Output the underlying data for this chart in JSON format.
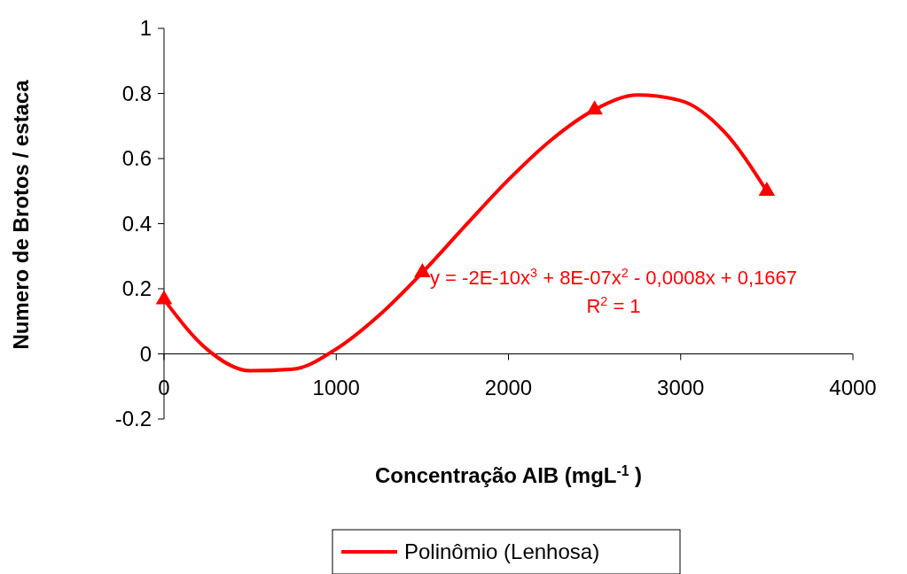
{
  "chart_data": {
    "type": "scatter",
    "xlabel": "Concentração AIB (mgL$^{-1}$ )",
    "ylabel": "Numero de Brotos / estaca",
    "xlim": [
      0,
      4000
    ],
    "xticks": [
      0,
      1000,
      2000,
      3000,
      4000
    ],
    "ylim": [
      -0.2,
      1
    ],
    "yticks": [
      -0.2,
      0,
      0.2,
      0.4,
      0.6,
      0.8,
      1
    ],
    "grid": false,
    "legend": "bottom",
    "series": [
      {
        "type": "line",
        "name": "Polinômio (Lenhosa)",
        "color": "#ff0000",
        "marker": "none",
        "line_style": "solid",
        "x": [
          0,
          250,
          500,
          750,
          1000,
          1250,
          1500,
          1750,
          2000,
          2250,
          2500,
          2750,
          3000,
          3250,
          3500
        ],
        "values": [
          0.167,
          0.014,
          -0.052,
          -0.047,
          0.015,
          0.119,
          0.25,
          0.394,
          0.535,
          0.658,
          0.75,
          0.795,
          0.778,
          0.684,
          0.5
        ]
      },
      {
        "color": "#ff0000",
        "marker": "triangle",
        "x": [
          0,
          1500,
          2500,
          3500
        ],
        "values": [
          0.167,
          0.25,
          0.75,
          0.5
        ]
      }
    ],
    "annotations": [
      "y = -2E-10x$^{3}$ + 8E-07x$^{2}$ - 0,0008x + 0,1667",
      "R$^{2}$ = 1"
    ]
  }
}
